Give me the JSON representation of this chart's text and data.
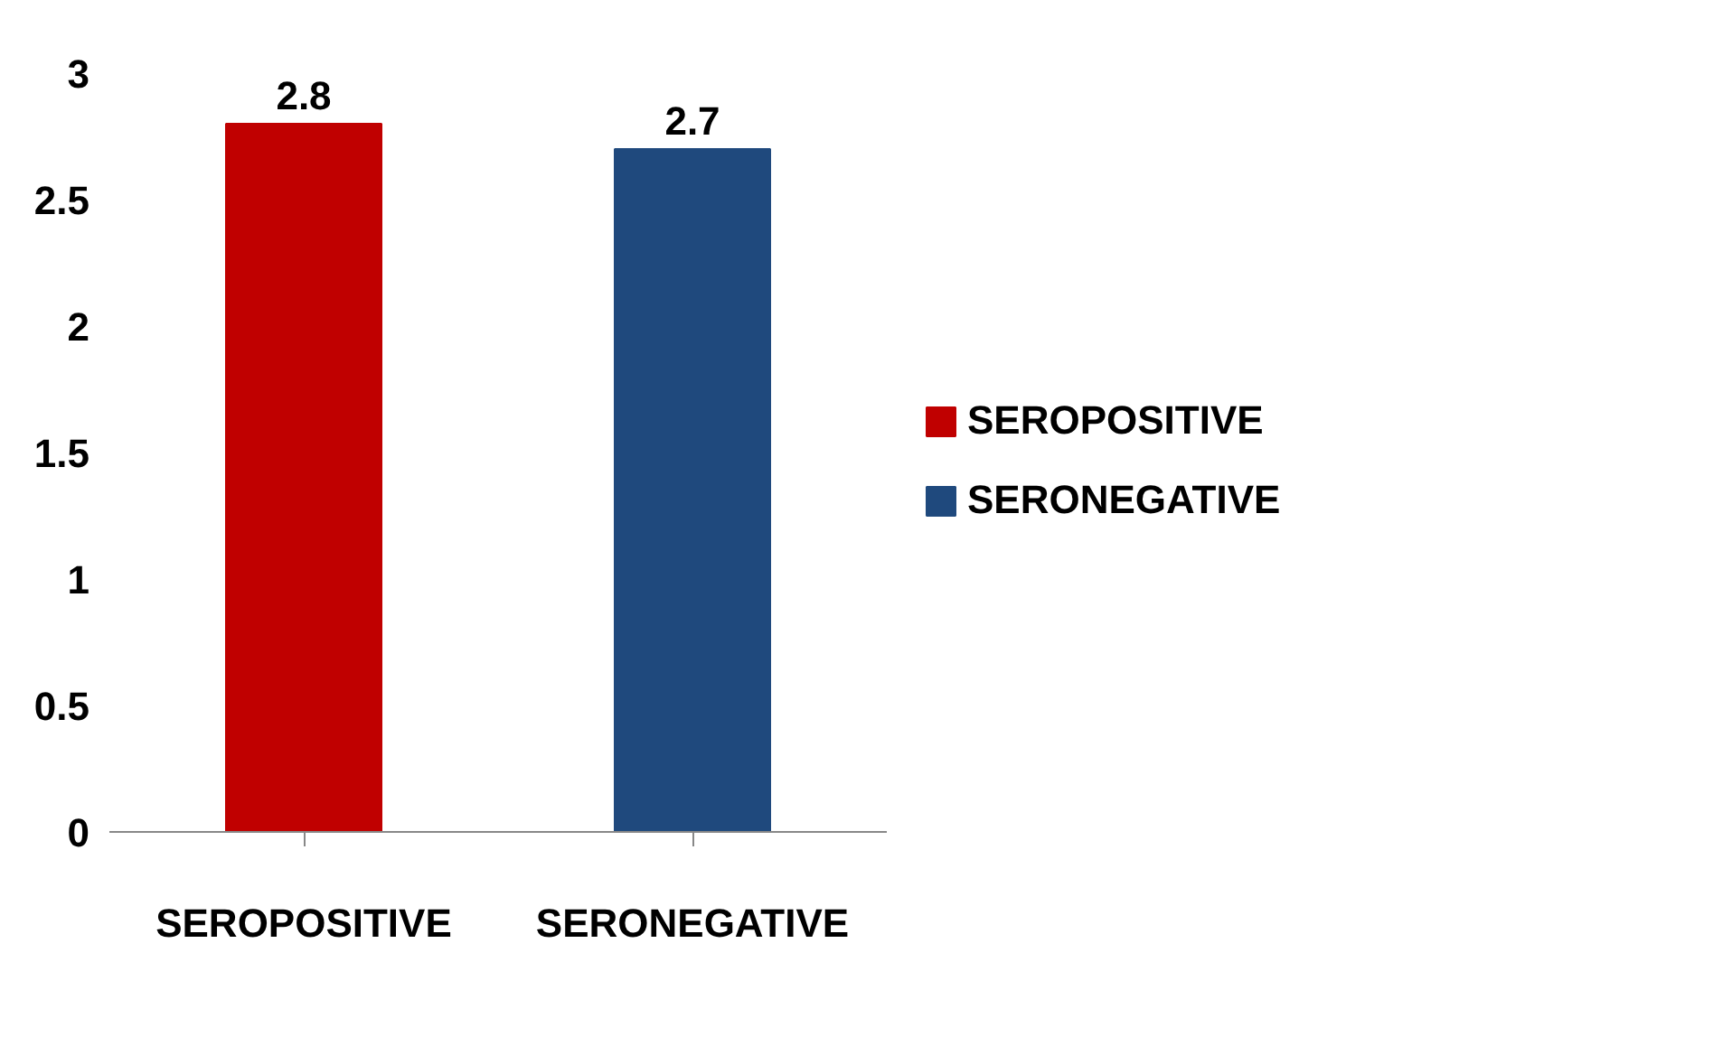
{
  "chart_data": {
    "type": "bar",
    "categories": [
      "SEROPOSITIVE",
      "SERONEGATIVE"
    ],
    "series": [
      {
        "name": "SEROPOSITIVE",
        "color": "#c00000",
        "values": [
          2.8,
          null
        ]
      },
      {
        "name": "SERONEGATIVE",
        "color": "#1f497d",
        "values": [
          null,
          2.7
        ]
      }
    ],
    "ylim": [
      0,
      3
    ],
    "yticks": [
      0,
      0.5,
      1,
      1.5,
      2,
      2.5,
      3
    ],
    "data_labels": true,
    "grid": false,
    "legend": "right"
  }
}
